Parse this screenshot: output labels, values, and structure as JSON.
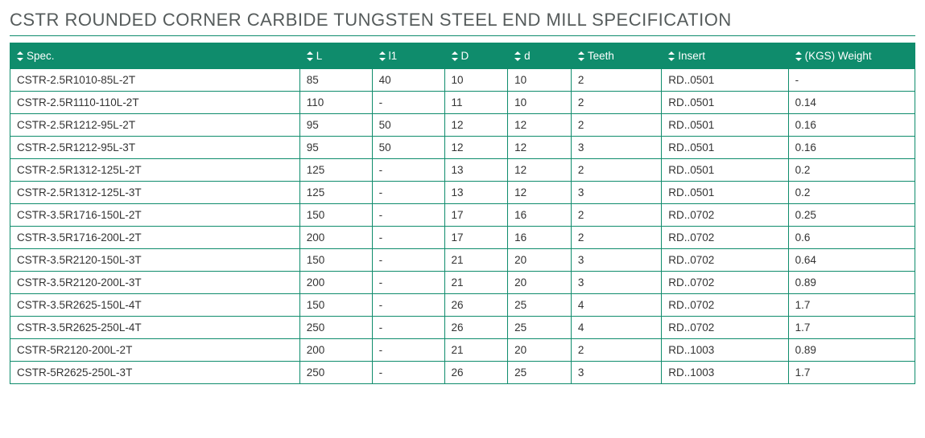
{
  "title": "CSTR ROUNDED CORNER CARBIDE TUNGSTEN STEEL END MILL SPECIFICATION",
  "columns": [
    {
      "key": "spec",
      "label": "Spec.",
      "class": "col-spec"
    },
    {
      "key": "L",
      "label": "L",
      "class": "col-L"
    },
    {
      "key": "l1",
      "label": "l1",
      "class": "col-l1"
    },
    {
      "key": "D",
      "label": "D",
      "class": "col-D"
    },
    {
      "key": "d",
      "label": "d",
      "class": "col-d"
    },
    {
      "key": "teeth",
      "label": "Teeth",
      "class": "col-teeth"
    },
    {
      "key": "insert",
      "label": "Insert",
      "class": "col-insert"
    },
    {
      "key": "weight",
      "label": "(KGS) Weight",
      "class": "col-weight"
    }
  ],
  "rows": [
    {
      "spec": "CSTR-2.5R1010-85L-2T",
      "L": "85",
      "l1": "40",
      "D": "10",
      "d": "10",
      "teeth": "2",
      "insert": "RD..0501",
      "weight": "-"
    },
    {
      "spec": "CSTR-2.5R1110-110L-2T",
      "L": "110",
      "l1": "-",
      "D": "11",
      "d": "10",
      "teeth": "2",
      "insert": "RD..0501",
      "weight": "0.14"
    },
    {
      "spec": "CSTR-2.5R1212-95L-2T",
      "L": "95",
      "l1": "50",
      "D": "12",
      "d": "12",
      "teeth": "2",
      "insert": "RD..0501",
      "weight": "0.16"
    },
    {
      "spec": "CSTR-2.5R1212-95L-3T",
      "L": "95",
      "l1": "50",
      "D": "12",
      "d": "12",
      "teeth": "3",
      "insert": "RD..0501",
      "weight": "0.16"
    },
    {
      "spec": "CSTR-2.5R1312-125L-2T",
      "L": "125",
      "l1": "-",
      "D": "13",
      "d": "12",
      "teeth": "2",
      "insert": "RD..0501",
      "weight": "0.2"
    },
    {
      "spec": "CSTR-2.5R1312-125L-3T",
      "L": "125",
      "l1": "-",
      "D": "13",
      "d": "12",
      "teeth": "3",
      "insert": "RD..0501",
      "weight": "0.2"
    },
    {
      "spec": "CSTR-3.5R1716-150L-2T",
      "L": "150",
      "l1": "-",
      "D": "17",
      "d": "16",
      "teeth": "2",
      "insert": "RD..0702",
      "weight": "0.25"
    },
    {
      "spec": "CSTR-3.5R1716-200L-2T",
      "L": "200",
      "l1": "-",
      "D": "17",
      "d": "16",
      "teeth": "2",
      "insert": "RD..0702",
      "weight": "0.6"
    },
    {
      "spec": "CSTR-3.5R2120-150L-3T",
      "L": "150",
      "l1": "-",
      "D": "21",
      "d": "20",
      "teeth": "3",
      "insert": "RD..0702",
      "weight": "0.64"
    },
    {
      "spec": "CSTR-3.5R2120-200L-3T",
      "L": "200",
      "l1": "-",
      "D": "21",
      "d": "20",
      "teeth": "3",
      "insert": "RD..0702",
      "weight": "0.89"
    },
    {
      "spec": "CSTR-3.5R2625-150L-4T",
      "L": "150",
      "l1": "-",
      "D": "26",
      "d": "25",
      "teeth": "4",
      "insert": "RD..0702",
      "weight": "1.7"
    },
    {
      "spec": "CSTR-3.5R2625-250L-4T",
      "L": "250",
      "l1": "-",
      "D": "26",
      "d": "25",
      "teeth": "4",
      "insert": "RD..0702",
      "weight": "1.7"
    },
    {
      "spec": "CSTR-5R2120-200L-2T",
      "L": "200",
      "l1": "-",
      "D": "21",
      "d": "20",
      "teeth": "2",
      "insert": "RD..1003",
      "weight": "0.89"
    },
    {
      "spec": "CSTR-5R2625-250L-3T",
      "L": "250",
      "l1": "-",
      "D": "26",
      "d": "25",
      "teeth": "3",
      "insert": "RD..1003",
      "weight": "1.7"
    }
  ],
  "style": {
    "header_bg": "#0f8c6c",
    "header_text": "#ffffff",
    "border_color": "#0f8c6c",
    "title_color": "#555b5b",
    "body_text": "#333333",
    "font_size_body": 13.5,
    "font_size_title": 22
  }
}
